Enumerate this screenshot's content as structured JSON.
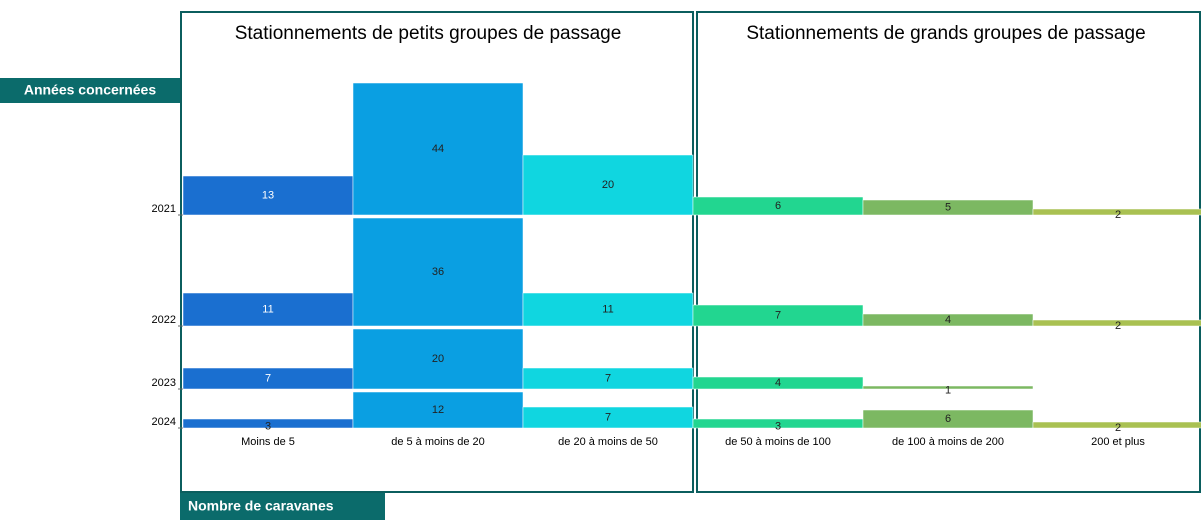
{
  "chart_data": {
    "type": "bar",
    "panel_titles": [
      "Stationnements de petits groupes de passage",
      "Stationnements de grands groupes de passage"
    ],
    "y_label": "Années concernées",
    "x_label": "Nombre de caravanes",
    "categories": [
      "2021",
      "2022",
      "2023",
      "2024"
    ],
    "series": [
      {
        "name": "Moins de 5",
        "color": "#1a6fd0",
        "values": [
          13,
          11,
          7,
          3
        ]
      },
      {
        "name": "de 5 à moins de 20",
        "color": "#0a9fe2",
        "values": [
          44,
          36,
          20,
          12
        ]
      },
      {
        "name": "de 20 à moins de 50",
        "color": "#10d6e0",
        "values": [
          20,
          11,
          7,
          7
        ]
      },
      {
        "name": "de 50 à moins de 100",
        "color": "#22d690",
        "values": [
          6,
          7,
          4,
          3
        ]
      },
      {
        "name": "de 100 à moins de 200",
        "color": "#7cb862",
        "values": [
          5,
          4,
          1,
          6
        ]
      },
      {
        "name": "200 et plus",
        "color": "#a9c152",
        "values": [
          2,
          2,
          null,
          2
        ]
      }
    ]
  }
}
